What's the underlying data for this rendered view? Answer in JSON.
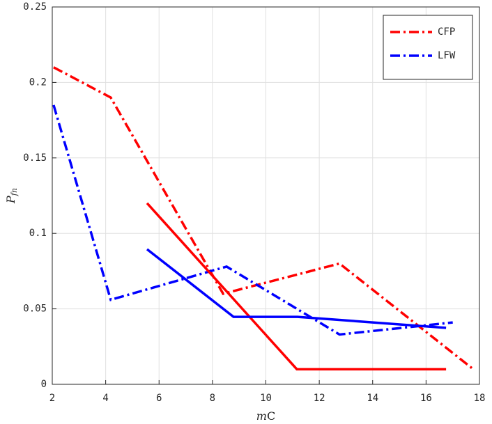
{
  "chart_data": {
    "type": "line",
    "xlabel": {
      "italic": "m",
      "rest": "C"
    },
    "ylabel": {
      "base": "P",
      "sub": "fn"
    },
    "xlim": [
      2,
      18
    ],
    "xticks": [
      2,
      4,
      6,
      8,
      10,
      12,
      14,
      16,
      18
    ],
    "ylim": [
      0,
      0.25
    ],
    "yticks": [
      0,
      0.05,
      0.1,
      0.15,
      0.2,
      0.25
    ],
    "grid": true,
    "legend_position": "upper-right",
    "series": [
      {
        "name": "CFP",
        "color": "#ff0000",
        "style": "dashdot",
        "x": [
          2.05,
          4.19,
          8.4,
          12.76,
          17.77
        ],
        "values": [
          0.21,
          0.19,
          0.06,
          0.08,
          0.01
        ]
      },
      {
        "name": "LFW",
        "color": "#0000ff",
        "style": "dashdot",
        "x": [
          2.05,
          4.19,
          8.53,
          12.76,
          17.0
        ],
        "values": [
          0.185,
          0.056,
          0.078,
          0.033,
          0.041
        ]
      },
      {
        "color": "#ff0000",
        "style": "solid",
        "x": [
          5.55,
          11.16,
          16.75
        ],
        "values": [
          0.12,
          0.01,
          0.01
        ]
      },
      {
        "color": "#0000ff",
        "style": "solid",
        "x": [
          5.55,
          8.79,
          11.19,
          16.75
        ],
        "values": [
          0.0895,
          0.0447,
          0.0447,
          0.0374
        ]
      }
    ]
  }
}
